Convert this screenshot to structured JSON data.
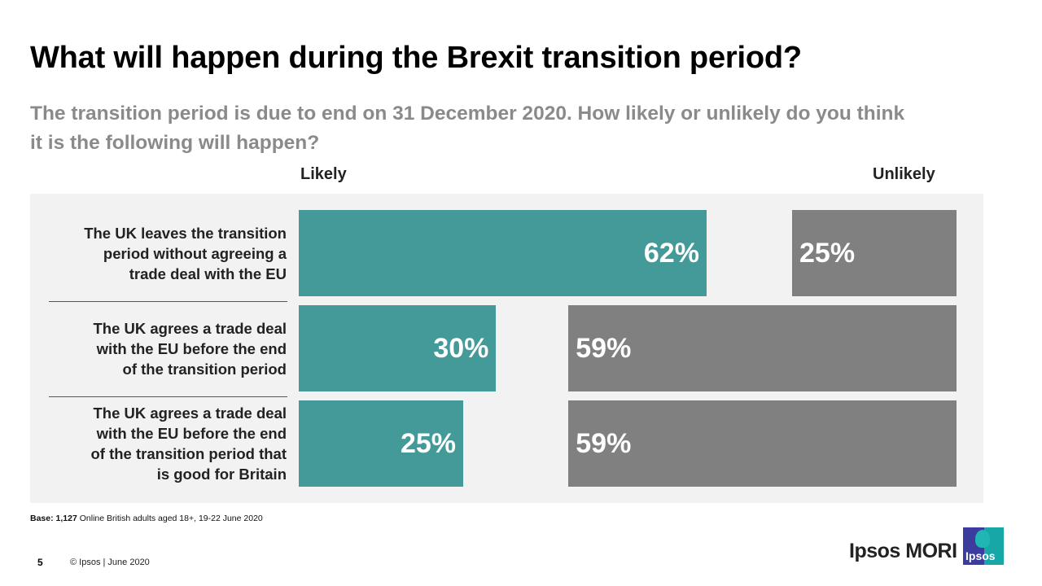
{
  "header": {
    "title": "What will happen during the Brexit transition period?",
    "subtitle": "The transition period is due to end on 31 December 2020. How likely or unlikely do you think it is the following will happen?"
  },
  "colors": {
    "likely": "#439a99",
    "unlikely": "#808080",
    "panel": "#f2f2f2"
  },
  "chart_data": {
    "type": "bar",
    "orientation": "horizontal",
    "title": "What will happen during the Brexit transition period?",
    "column_headers": {
      "likely": "Likely",
      "unlikely": "Unlikely"
    },
    "categories": [
      "The UK leaves the transition period without agreeing a trade deal with the EU",
      "The UK agrees a trade deal with the EU before the end of the transition period",
      "The UK agrees a trade deal with the EU before the end of the transition period that is good for Britain"
    ],
    "category_lines": [
      [
        "The UK leaves the transition",
        "period without agreeing a",
        "trade deal with the EU"
      ],
      [
        "The UK agrees a trade deal",
        "with the EU before the end",
        "of the transition period"
      ],
      [
        "The UK agrees a trade deal",
        "with the EU before the end",
        "of the transition period that",
        "is good for Britain"
      ]
    ],
    "series": [
      {
        "name": "Likely",
        "values": [
          62,
          30,
          25
        ],
        "labels": [
          "62%",
          "30%",
          "25%"
        ],
        "align": "left"
      },
      {
        "name": "Unlikely",
        "values": [
          25,
          59,
          59
        ],
        "labels": [
          "25%",
          "59%",
          "59%"
        ],
        "align": "right"
      }
    ],
    "unit": "%",
    "grid": false,
    "legend": "none"
  },
  "footer": {
    "base_label": "Base:",
    "base_value": "1,127",
    "base_text": "Online British adults aged 18+,  19-22 June 2020",
    "page_number": "5",
    "copyright": "© Ipsos |  June 2020",
    "brand": "Ipsos MORI",
    "logo_text": "Ipsos"
  }
}
